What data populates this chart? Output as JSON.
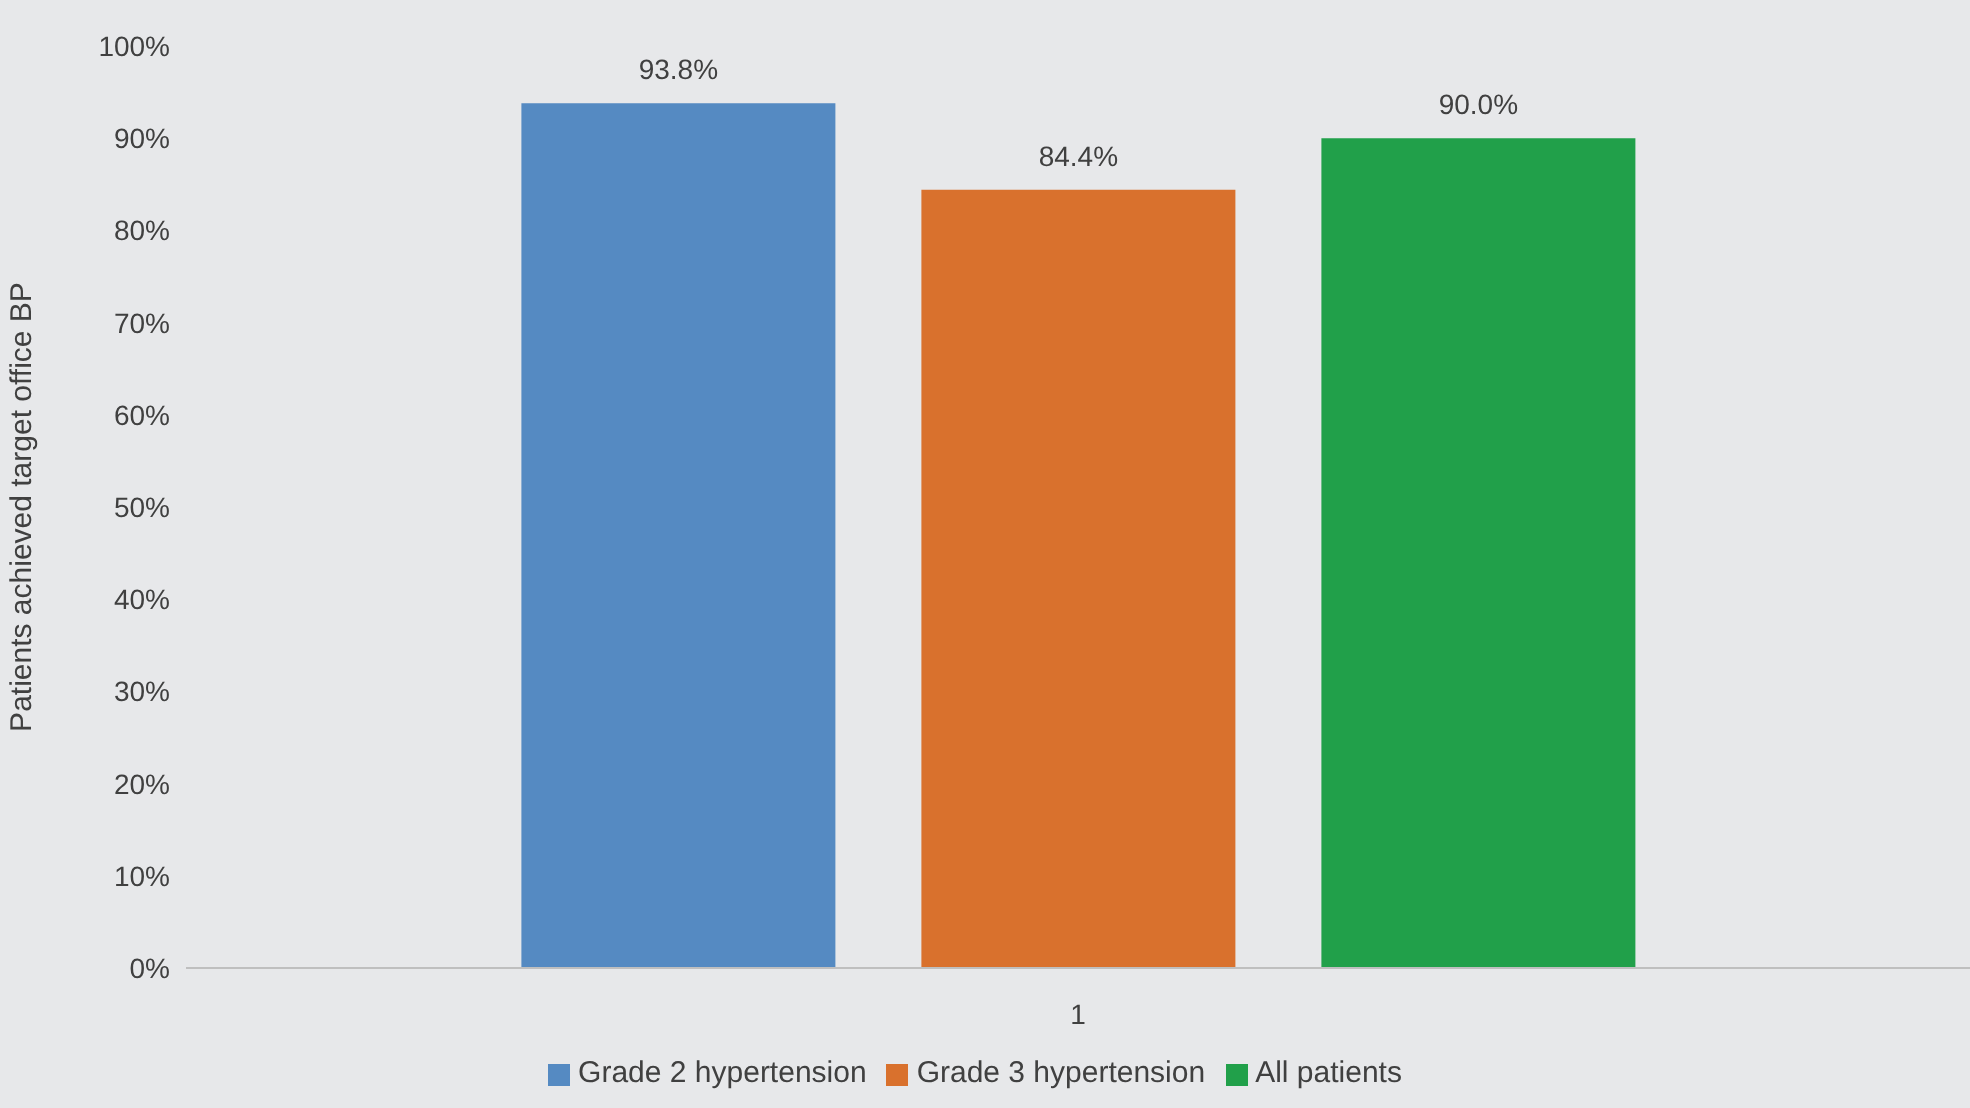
{
  "chart_data": {
    "type": "bar",
    "ylabel": "Patients achieved target office BP",
    "categories": [
      "1"
    ],
    "series": [
      {
        "name": "Grade 2 hypertension",
        "color": "#558ac2",
        "values": [
          93.8
        ],
        "value_labels": [
          "93.8%"
        ]
      },
      {
        "name": "Grade 3 hypertension",
        "color": "#d9712d",
        "values": [
          84.4
        ],
        "value_labels": [
          "84.4%"
        ]
      },
      {
        "name": "All patients",
        "color": "#21a04a",
        "values": [
          90.0
        ],
        "value_labels": [
          "90.0%"
        ]
      }
    ],
    "ylim": [
      0,
      100
    ],
    "yticks": [
      {
        "value": 0,
        "label": "0%"
      },
      {
        "value": 10,
        "label": "10%"
      },
      {
        "value": 20,
        "label": "20%"
      },
      {
        "value": 30,
        "label": "30%"
      },
      {
        "value": 40,
        "label": "40%"
      },
      {
        "value": 50,
        "label": "50%"
      },
      {
        "value": 60,
        "label": "60%"
      },
      {
        "value": 70,
        "label": "70%"
      },
      {
        "value": 80,
        "label": "80%"
      },
      {
        "value": 90,
        "label": "90%"
      },
      {
        "value": 100,
        "label": "100%"
      }
    ],
    "legend": "bottom"
  }
}
